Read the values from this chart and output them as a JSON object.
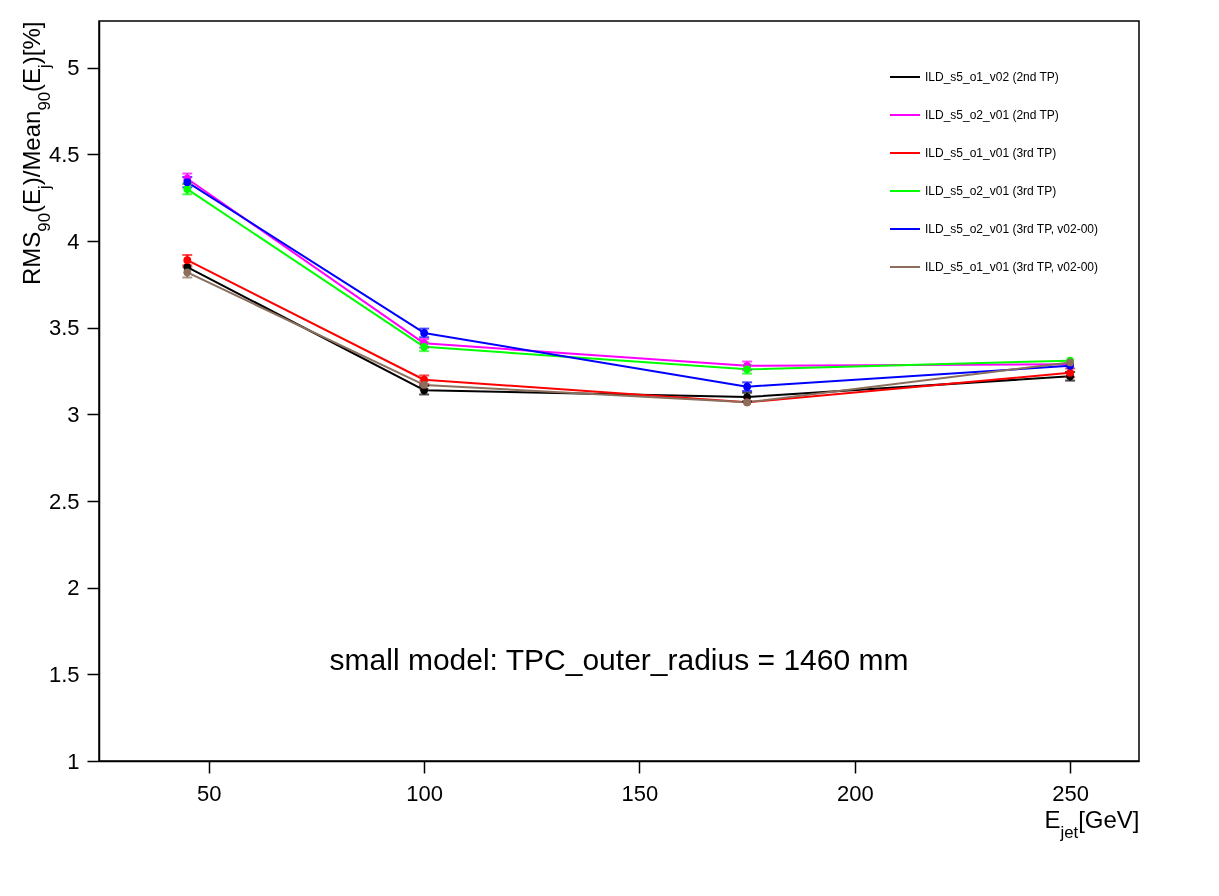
{
  "chart_data": {
    "type": "line",
    "xlabel": "E$_{jet}$[GeV]",
    "ylabel": "RMS$_{90}$(E$_{j}$)/Mean$_{90}$(E$_{j}$)[%]",
    "x": [
      45,
      100,
      175,
      250
    ],
    "xlim": [
      24.5,
      266
    ],
    "xticks": [
      50,
      100,
      150,
      200,
      250
    ],
    "ylim": [
      1,
      5.27
    ],
    "yticks": [
      1,
      1.5,
      2,
      2.5,
      3,
      3.5,
      4,
      4.5,
      5
    ],
    "grid": false,
    "legend": "top right",
    "marker": "circle",
    "line_style": "solid",
    "annotations": [
      "small model: TPC_outer_radius = 1460 mm"
    ],
    "series": [
      {
        "name": "ILD_s5_o1_v02 (2nd TP)",
        "color": "#000000",
        "values": [
          3.85,
          3.14,
          3.1,
          3.22
        ],
        "errors": [
          null,
          0.025,
          0.025,
          0.025
        ]
      },
      {
        "name": "ILD_s5_o2_v01 (2nd TP)",
        "color": "#ff00ff",
        "values": [
          4.36,
          3.41,
          3.28,
          3.29
        ],
        "errors": [
          0.03,
          0.025,
          0.025,
          null
        ]
      },
      {
        "name": "ILD_s5_o1_v01 (3rd TP)",
        "color": "#ff0000",
        "values": [
          3.89,
          3.2,
          3.07,
          3.24
        ],
        "errors": [
          0.03,
          0.025,
          null,
          0.025
        ]
      },
      {
        "name": "ILD_s5_o2_v01 (3rd TP)",
        "color": "#00ff00",
        "values": [
          4.3,
          3.39,
          3.26,
          3.31
        ],
        "errors": [
          0.03,
          0.025,
          0.025,
          null
        ]
      },
      {
        "name": "ILD_s5_o2_v01 (3rd TP, v02-00)",
        "color": "#0000ff",
        "values": [
          4.34,
          3.47,
          3.16,
          3.28
        ],
        "errors": [
          0.03,
          0.025,
          0.025,
          null
        ]
      },
      {
        "name": "ILD_s5_o1_v01 (3rd TP, v02-00)",
        "color": "#8b6f5c",
        "values": [
          3.82,
          3.17,
          3.07,
          3.3
        ],
        "errors": [
          0.03,
          0.025,
          null,
          null
        ]
      }
    ]
  }
}
